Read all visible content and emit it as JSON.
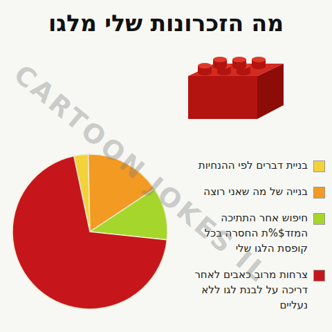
{
  "chart_data": {
    "type": "pie",
    "title": "מה הזכרונות שלי מלגו",
    "categories": [
      "בניית דברים לפי ההנחיות",
      "בנייה של מה שאני רוצה",
      "חיפוש אחר התתיכה המזד$%ת החסרה בכל קופסת הלגו שלי",
      "צרחות מרוב כאבים לאחר דריכה על לבנת לגו ללא נעליים"
    ],
    "values": [
      3,
      16,
      11,
      70
    ],
    "colors": [
      "#f3d23a",
      "#f39a22",
      "#a5d62c",
      "#c6161c"
    ],
    "legend": "right",
    "annotations": [
      "CARTOON JOKES IL"
    ]
  }
}
